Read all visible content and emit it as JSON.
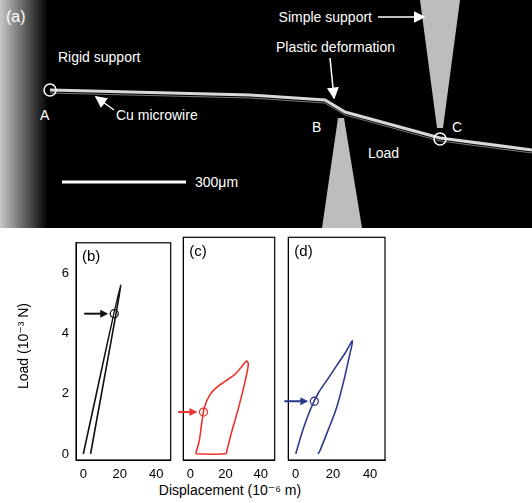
{
  "panel_a": {
    "panel_label": "(a)",
    "rigid_support": "Rigid support",
    "simple_support": "Simple support",
    "plastic_deformation": "Plastic deformation",
    "wire": "Cu microwire",
    "load": "Load",
    "points": [
      "A",
      "B",
      "C"
    ],
    "scale_bar": "300μm"
  },
  "x_label": "Displacement (10⁻⁶ m)",
  "y_label": "Load (10⁻³ N)",
  "chart_data": [
    {
      "type": "line",
      "label": "(b)",
      "color": "#111111",
      "tick_labels": true,
      "x": [
        0,
        20.5,
        4
      ],
      "values": [
        0,
        5.6,
        0
      ],
      "marker_point": {
        "x": 17,
        "y": 4.65
      },
      "xlim": [
        -4,
        48
      ],
      "xticks": [
        0,
        20,
        40
      ],
      "ylim": [
        -0.2,
        7
      ],
      "yticks": [
        0,
        2,
        4,
        6
      ],
      "grid": false
    },
    {
      "type": "line",
      "label": "(c)",
      "color": "#e8352e",
      "tick_labels": "x",
      "x": [
        3,
        5,
        6.5,
        8,
        11,
        15,
        20,
        25,
        29,
        32,
        33,
        31,
        27,
        23,
        21,
        20,
        3
      ],
      "values": [
        0,
        0.4,
        1.0,
        1.5,
        1.9,
        2.15,
        2.35,
        2.55,
        2.8,
        3.0,
        2.9,
        2.3,
        1.4,
        0.6,
        0.15,
        0,
        0
      ],
      "marker_point": {
        "x": 7.5,
        "y": 1.35
      },
      "xlim": [
        -4,
        48
      ],
      "xticks": [
        0,
        20,
        40
      ],
      "ylim": [
        -0.2,
        7
      ],
      "yticks": [
        0,
        2,
        4,
        6
      ],
      "grid": false
    },
    {
      "type": "line",
      "label": "(d)",
      "color": "#2d3a8c",
      "tick_labels": "x",
      "x": [
        0,
        4,
        8,
        12,
        17,
        22,
        27,
        30.5,
        29,
        26,
        22,
        17,
        13,
        12
      ],
      "values": [
        0,
        0.8,
        1.45,
        1.95,
        2.4,
        2.85,
        3.3,
        3.65,
        3.2,
        2.4,
        1.5,
        0.7,
        0.1,
        0
      ],
      "marker_point": {
        "x": 10,
        "y": 1.7
      },
      "xlim": [
        -4,
        48
      ],
      "xticks": [
        0,
        20,
        40
      ],
      "ylim": [
        -0.2,
        7
      ],
      "yticks": [
        0,
        2,
        4,
        6
      ],
      "grid": false
    }
  ]
}
